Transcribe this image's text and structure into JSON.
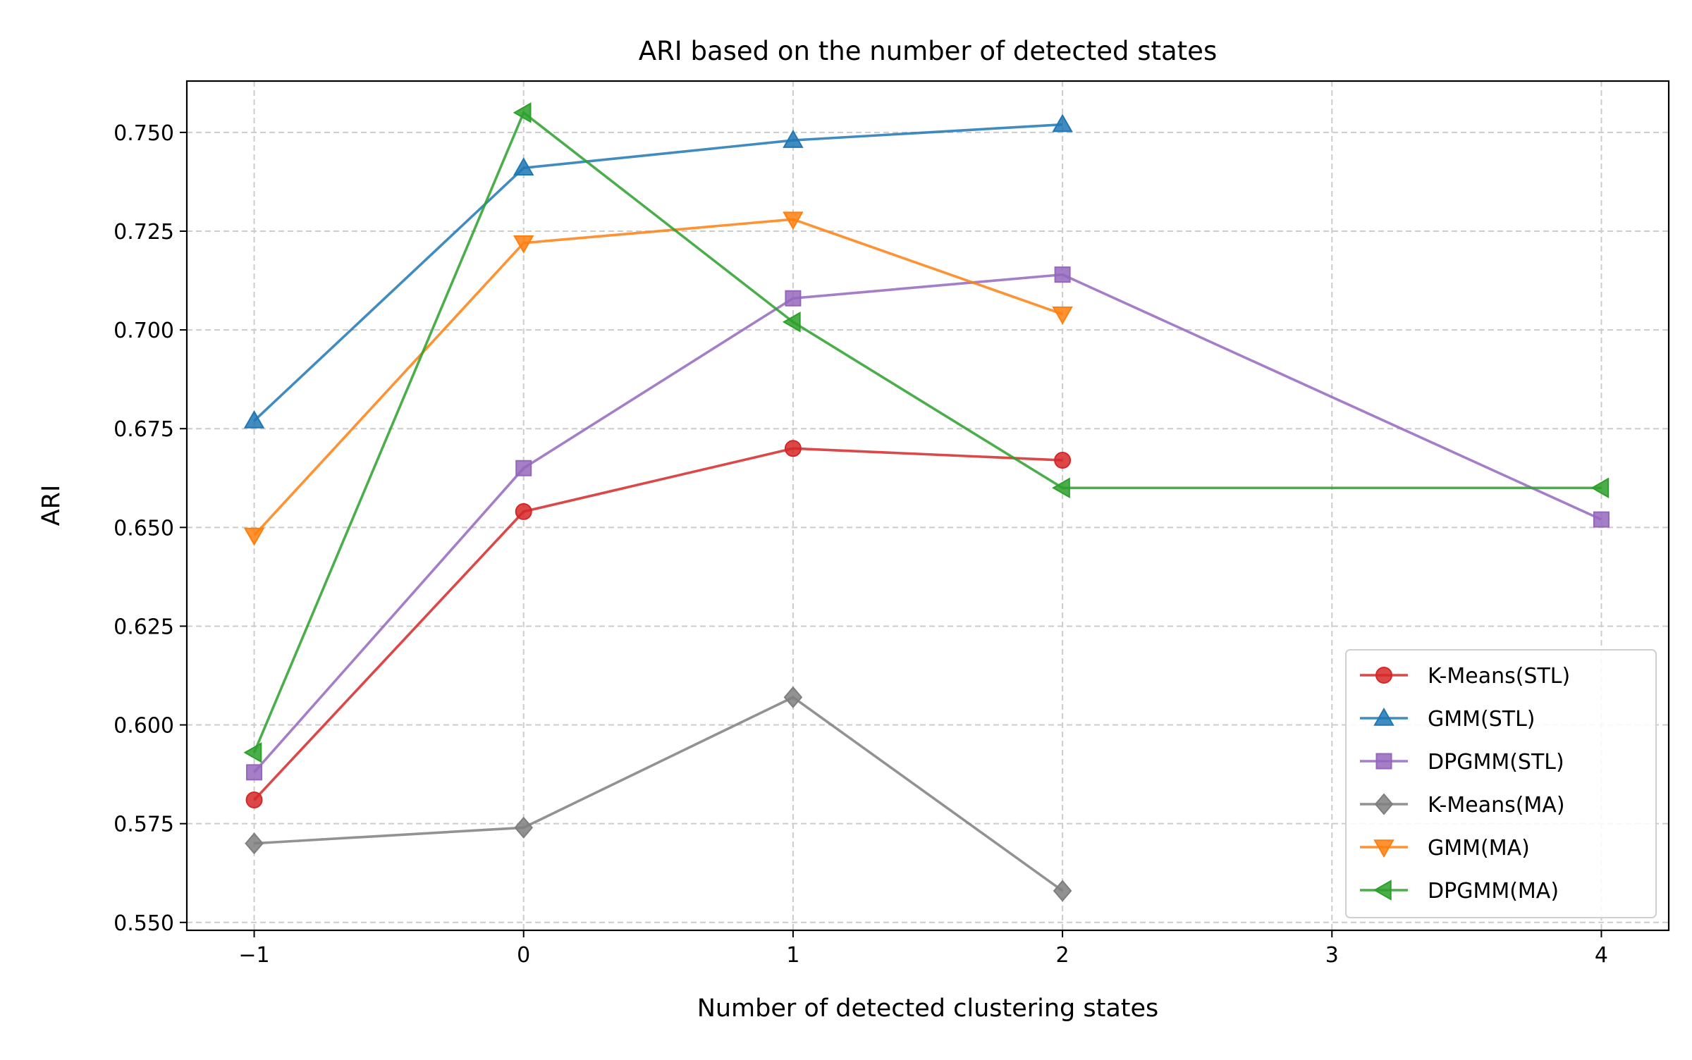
{
  "chart_data": {
    "type": "line",
    "title": "ARI based on the number of detected states",
    "xlabel": "Number of detected clustering states",
    "ylabel": "ARI",
    "xlim": [
      -1.25,
      4.25
    ],
    "ylim": [
      0.548,
      0.763
    ],
    "xticks": [
      -1,
      0,
      1,
      2,
      3,
      4
    ],
    "xtick_labels": [
      "−1",
      "0",
      "1",
      "2",
      "3",
      "4"
    ],
    "yticks": [
      0.55,
      0.575,
      0.6,
      0.625,
      0.65,
      0.675,
      0.7,
      0.725,
      0.75
    ],
    "ytick_labels": [
      "0.550",
      "0.575",
      "0.600",
      "0.625",
      "0.650",
      "0.675",
      "0.700",
      "0.725",
      "0.750"
    ],
    "grid": true,
    "legend_position": "lower-right",
    "series": [
      {
        "name": "K-Means(STL)",
        "color": "#d62728",
        "marker": "circle",
        "x": [
          -1,
          0,
          1,
          2
        ],
        "y": [
          0.581,
          0.654,
          0.67,
          0.667
        ]
      },
      {
        "name": "GMM(STL)",
        "color": "#1f77b4",
        "marker": "triangle-up",
        "x": [
          -1,
          0,
          1,
          2
        ],
        "y": [
          0.677,
          0.741,
          0.748,
          0.752
        ]
      },
      {
        "name": "DPGMM(STL)",
        "color": "#9467bd",
        "marker": "square",
        "x": [
          -1,
          0,
          1,
          2,
          4
        ],
        "y": [
          0.588,
          0.665,
          0.708,
          0.714,
          0.652
        ]
      },
      {
        "name": "K-Means(MA)",
        "color": "#7f7f7f",
        "marker": "diamond",
        "x": [
          -1,
          0,
          1,
          2
        ],
        "y": [
          0.57,
          0.574,
          0.607,
          0.558
        ]
      },
      {
        "name": "GMM(MA)",
        "color": "#ff7f0e",
        "marker": "triangle-down",
        "x": [
          -1,
          0,
          1,
          2
        ],
        "y": [
          0.648,
          0.722,
          0.728,
          0.704
        ]
      },
      {
        "name": "DPGMM(MA)",
        "color": "#2ca02c",
        "marker": "triangle-left",
        "x": [
          -1,
          0,
          1,
          2,
          4
        ],
        "y": [
          0.593,
          0.755,
          0.702,
          0.66,
          0.66
        ]
      }
    ]
  }
}
